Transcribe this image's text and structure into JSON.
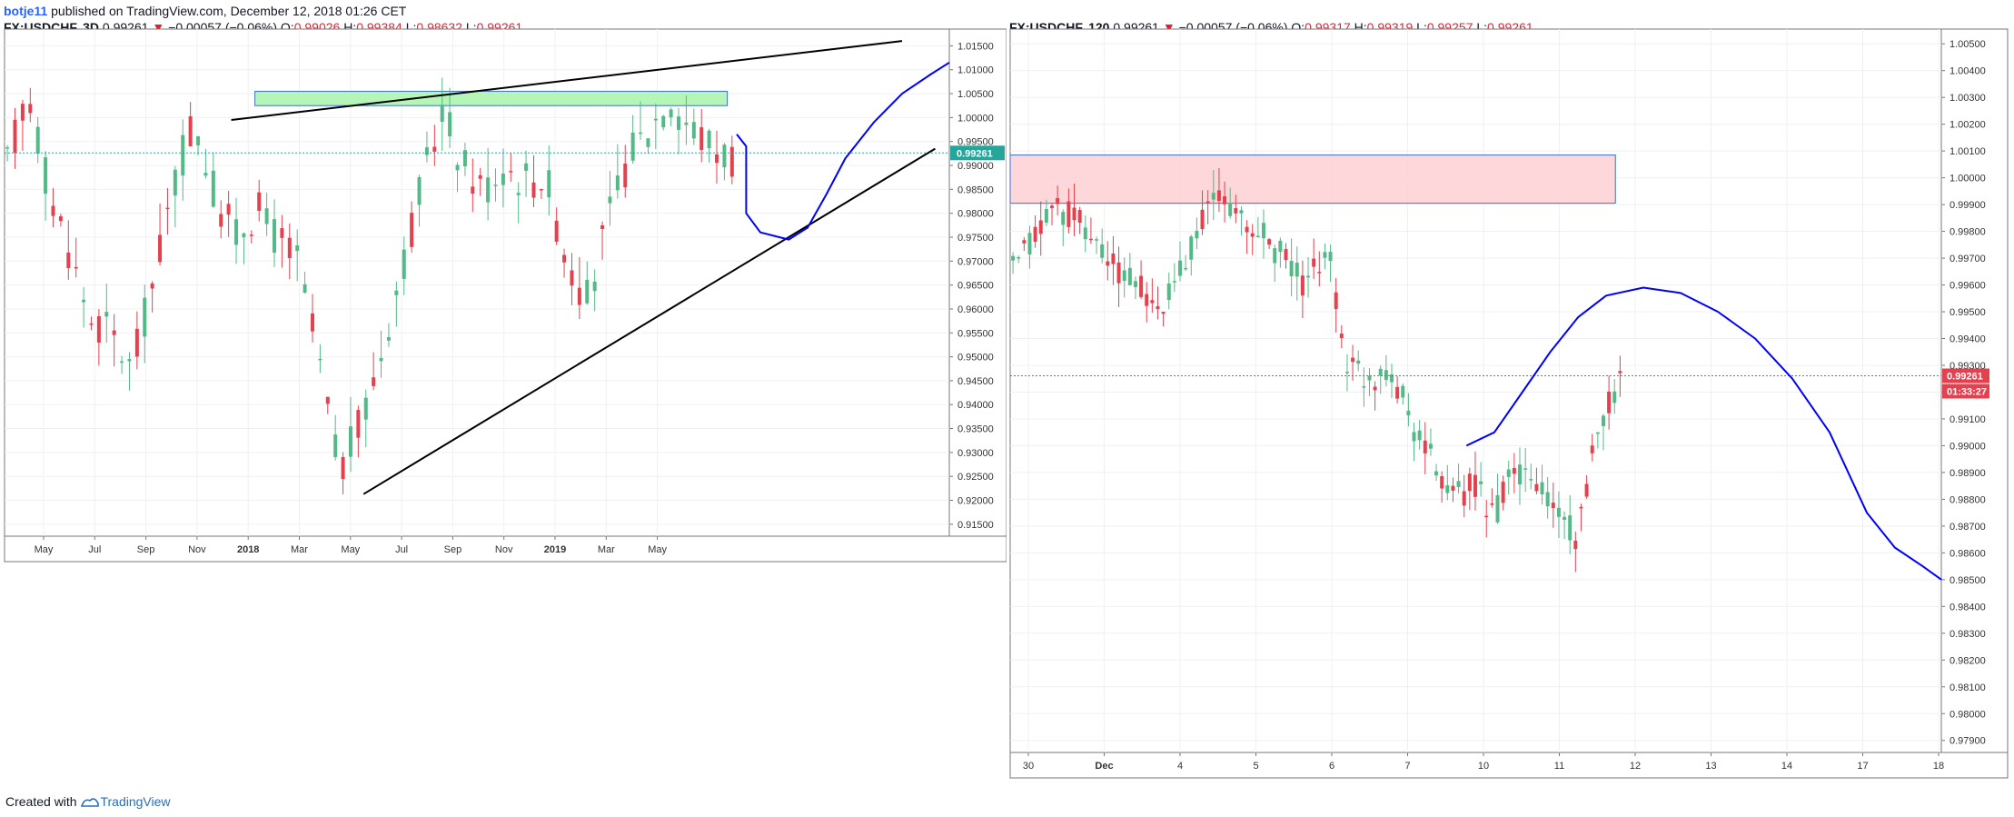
{
  "header": {
    "author": "botje11",
    "published_text": "published on TradingView.com, December 12, 2018 01:26 CET"
  },
  "footer": {
    "created_with": "Created with",
    "brand": "TradingView"
  },
  "colors": {
    "up": "#53b987",
    "down": "#e5404e",
    "trendline": "#000000",
    "projection": "#0000ff",
    "zone_green": "#a8f5ab",
    "zone_red": "#fdd0d3"
  },
  "chart_data": [
    {
      "type": "candlestick",
      "symbol": "FX:USDCHF, 3D",
      "last": "0.99261",
      "change": "−0.00057 (−0.06%)",
      "ohlc": {
        "O_label": "O:",
        "O": "0.99026",
        "H_label": "H:",
        "H": "0.99384",
        "L_label": "L:",
        "L": "0.98632",
        "C_label": "L:",
        "C": "0.99261"
      },
      "price_label": "0.99261",
      "y_range": [
        0.9125,
        1.0185
      ],
      "y_ticks": [
        "1.01500",
        "1.01000",
        "1.00500",
        "1.00000",
        "0.99500",
        "0.99000",
        "0.98500",
        "0.98000",
        "0.97500",
        "0.97000",
        "0.96500",
        "0.96000",
        "0.95500",
        "0.95000",
        "0.94500",
        "0.94000",
        "0.93500",
        "0.93000",
        "0.92500",
        "0.92000",
        "0.91500"
      ],
      "x_ticks": [
        "May",
        "Jul",
        "Sep",
        "Nov",
        "2018",
        "Mar",
        "May",
        "Jul",
        "Sep",
        "Nov",
        "2019",
        "Mar",
        "May"
      ],
      "zones": [
        {
          "color": "green",
          "from_pct": 26.5,
          "to_pct": 76.5,
          "low": 1.0025,
          "high": 1.0055
        }
      ],
      "trendlines": [
        {
          "from": [
            24,
            0.9995
          ],
          "to": [
            95,
            1.016
          ]
        },
        {
          "from": [
            38,
            0.9213
          ],
          "to": [
            98.5,
            0.9935
          ]
        }
      ],
      "projection_path": [
        [
          77.5,
          0.9965
        ],
        [
          78.5,
          0.994
        ],
        [
          78.5,
          0.98
        ],
        [
          80,
          0.976
        ],
        [
          83,
          0.9745
        ],
        [
          85,
          0.977
        ],
        [
          87,
          0.984
        ],
        [
          89,
          0.9915
        ],
        [
          92,
          0.999
        ],
        [
          95,
          1.005
        ],
        [
          98,
          1.009
        ],
        [
          100,
          1.0115
        ]
      ],
      "candles_sampled_summary": "approximately 100 candles, range 0.919 to 1.0125"
    },
    {
      "type": "candlestick",
      "symbol": "FX:USDCHF, 120",
      "last": "0.99261",
      "change": "−0.00057 (−0.06%)",
      "ohlc": {
        "O_label": "O:",
        "O": "0.99317",
        "H_label": "H:",
        "H": "0.99319",
        "L_label": "L:",
        "L": "0.99257",
        "C_label": "L:",
        "C": "0.99261"
      },
      "price_label": "0.99261",
      "countdown_label": "01:33:27",
      "y_range": [
        0.97855,
        1.00555
      ],
      "y_ticks": [
        "1.00500",
        "1.00400",
        "1.00300",
        "1.00200",
        "1.00100",
        "1.00000",
        "0.99900",
        "0.99800",
        "0.99700",
        "0.99600",
        "0.99500",
        "0.99400",
        "0.99300",
        "0.99200",
        "0.99100",
        "0.99000",
        "0.98900",
        "0.98800",
        "0.98700",
        "0.98600",
        "0.98500",
        "0.98400",
        "0.98300",
        "0.98200",
        "0.98100",
        "0.98000",
        "0.97900"
      ],
      "x_ticks": [
        "30",
        "Dec",
        "4",
        "5",
        "6",
        "7",
        "10",
        "11",
        "12",
        "13",
        "14",
        "17",
        "18"
      ],
      "zones": [
        {
          "color": "red",
          "from_pct": 0,
          "to_pct": 65,
          "low": 0.99905,
          "high": 1.00085
        }
      ]
    }
  ]
}
